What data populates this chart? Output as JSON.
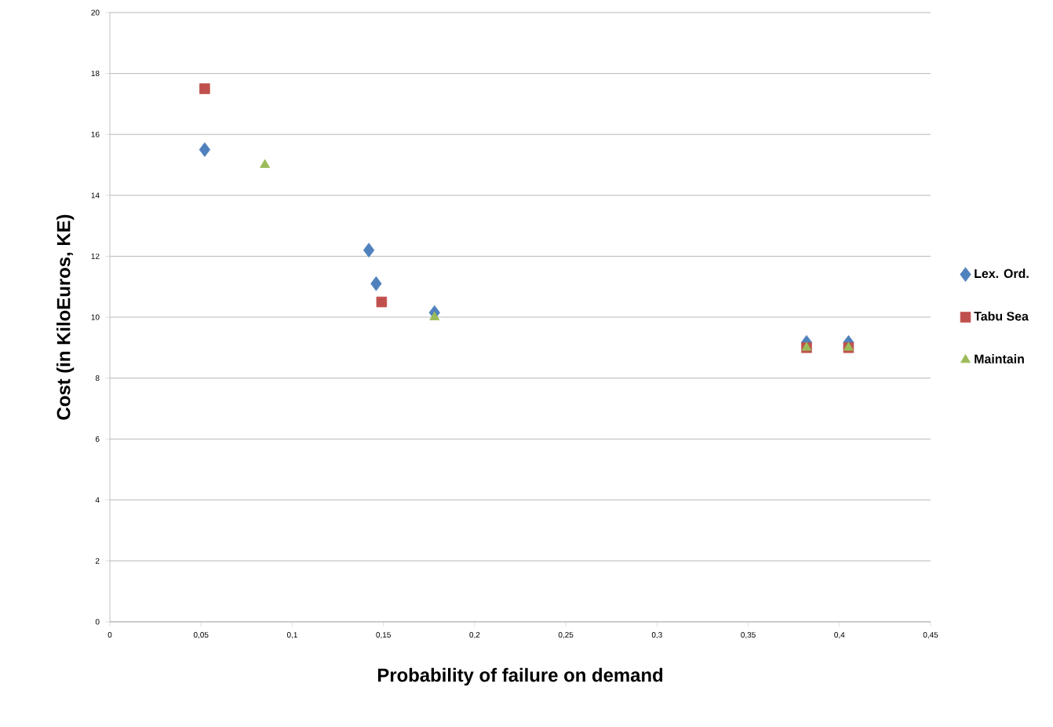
{
  "chart_data": {
    "type": "scatter",
    "xlabel": "Probability  of failure on demand",
    "ylabel": "Cost (in KiloEuros, KE)",
    "xlim": [
      0,
      0.45
    ],
    "xticks": [
      {
        "value": 0,
        "label": "0"
      },
      {
        "value": 0.05,
        "label": "0,05"
      },
      {
        "value": 0.1,
        "label": "0,1"
      },
      {
        "value": 0.15,
        "label": "0,15"
      },
      {
        "value": 0.2,
        "label": "0,2"
      },
      {
        "value": 0.25,
        "label": "0,25"
      },
      {
        "value": 0.3,
        "label": "0,3"
      },
      {
        "value": 0.35,
        "label": "0,35"
      },
      {
        "value": 0.4,
        "label": "0,4"
      },
      {
        "value": 0.45,
        "label": "0,45"
      }
    ],
    "ylim": [
      0,
      20
    ],
    "yticks": [
      0,
      2,
      4,
      6,
      8,
      10,
      12,
      14,
      16,
      18,
      20
    ],
    "grid": "y",
    "legend": "right",
    "series": [
      {
        "name": "Lex. Ord.",
        "color": "#4f81bd",
        "marker": "diamond",
        "x": [
          0.052,
          0.142,
          0.146,
          0.178,
          0.382,
          0.405
        ],
        "values": [
          15.5,
          12.2,
          11.1,
          10.15,
          9.17,
          9.17
        ]
      },
      {
        "name": "Tabu Sea",
        "color": "#c0504d",
        "marker": "square",
        "x": [
          0.052,
          0.149,
          0.382,
          0.405
        ],
        "values": [
          17.5,
          10.5,
          9.0,
          9.0
        ]
      },
      {
        "name": "Maintain",
        "color": "#9bbb59",
        "marker": "triangle",
        "x": [
          0.085,
          0.178,
          0.382,
          0.405
        ],
        "values": [
          15.0,
          10.0,
          9.0,
          9.0
        ]
      }
    ]
  }
}
